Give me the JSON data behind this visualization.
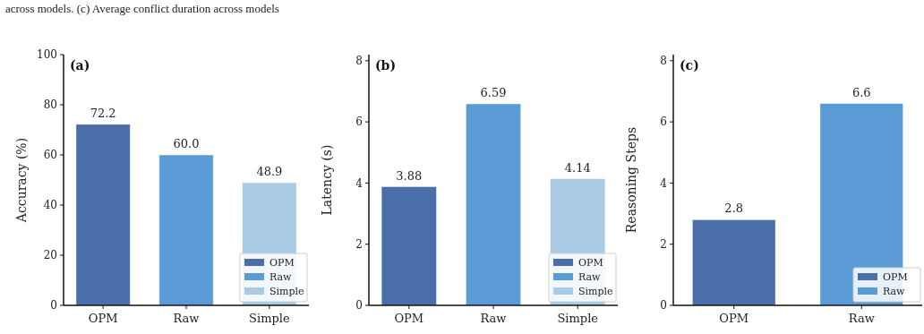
{
  "chart_data": [
    {
      "type": "bar",
      "title": "(a)",
      "ylabel": "Accuracy (%)",
      "categories": [
        "OPM",
        "Raw",
        "Simple"
      ],
      "series": [
        {
          "name": "OPM",
          "color": "#4a6ea8",
          "values": [
            72.2,
            null,
            null
          ],
          "value_labels": [
            "72.2",
            null,
            null
          ]
        },
        {
          "name": "Raw",
          "color": "#5b9bd5",
          "values": [
            null,
            60.0,
            null
          ],
          "value_labels": [
            null,
            "60.0",
            null
          ]
        },
        {
          "name": "Simple",
          "color": "#a9cbe4",
          "values": [
            null,
            null,
            48.9
          ],
          "value_labels": [
            null,
            null,
            "48.9"
          ]
        }
      ],
      "ylim": [
        0,
        100
      ],
      "yticks": [
        0,
        20,
        40,
        60,
        80,
        100
      ],
      "legend": "bottom right",
      "annotations": [
        "across models. (c) Average conflict duration across models"
      ]
    },
    {
      "type": "bar",
      "title": "(b)",
      "ylabel": "Latency (s)",
      "categories": [
        "OPM",
        "Raw",
        "Simple"
      ],
      "series": [
        {
          "name": "OPM",
          "color": "#4a6ea8",
          "values": [
            3.88,
            null,
            null
          ],
          "value_labels": [
            "3.88",
            null,
            null
          ]
        },
        {
          "name": "Raw",
          "color": "#5b9bd5",
          "values": [
            null,
            6.59,
            null
          ],
          "value_labels": [
            null,
            "6.59",
            null
          ]
        },
        {
          "name": "Simple",
          "color": "#a9cbe4",
          "values": [
            null,
            null,
            4.14
          ],
          "value_labels": [
            null,
            null,
            "4.14"
          ]
        }
      ],
      "ylim": [
        0,
        8.2
      ],
      "yticks": [
        0,
        2,
        4,
        6,
        8
      ],
      "legend": "bottom right"
    },
    {
      "type": "bar",
      "title": "(c)",
      "ylabel": "Reasoning Steps",
      "categories": [
        "OPM",
        "Raw"
      ],
      "series": [
        {
          "name": "OPM",
          "color": "#4a6ea8",
          "values": [
            2.8,
            null
          ],
          "value_labels": [
            "2.8",
            null
          ]
        },
        {
          "name": "Raw",
          "color": "#5b9bd5",
          "values": [
            null,
            6.6
          ],
          "value_labels": [
            null,
            "6.6"
          ]
        }
      ],
      "ylim": [
        0,
        8.2
      ],
      "yticks": [
        0,
        2,
        4,
        6,
        8
      ],
      "legend": "bottom right"
    }
  ]
}
